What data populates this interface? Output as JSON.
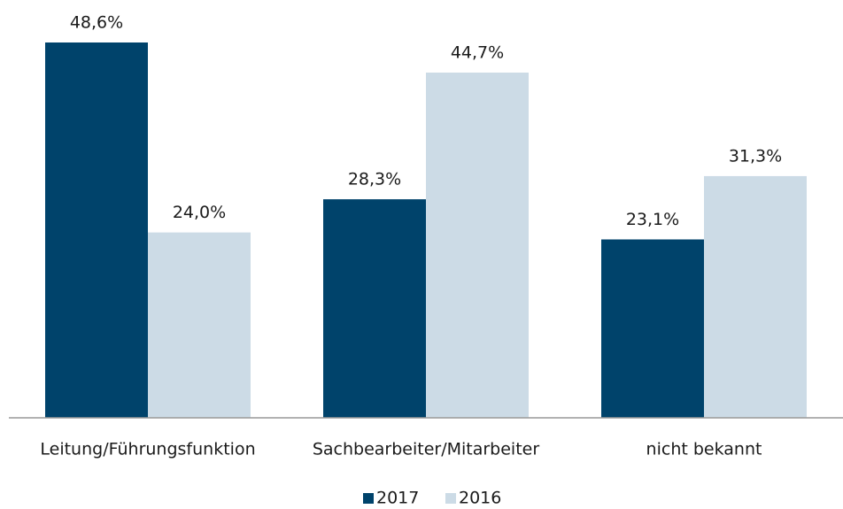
{
  "chart_data": {
    "type": "bar",
    "categories": [
      "Leitung/Führungsfunktion",
      "Sachbearbeiter/Mitarbeiter",
      "nicht bekannt"
    ],
    "series": [
      {
        "name": "2017",
        "color": "#00436b",
        "values": [
          48.6,
          28.3,
          23.1
        ],
        "value_labels": [
          "48,6%",
          "28,3%",
          "23,1%"
        ]
      },
      {
        "name": "2016",
        "color": "#ccdbe6",
        "values": [
          24.0,
          44.7,
          31.3
        ],
        "value_labels": [
          "24,0%",
          "44,7%",
          "31,3%"
        ]
      }
    ],
    "legend": "bottom"
  }
}
